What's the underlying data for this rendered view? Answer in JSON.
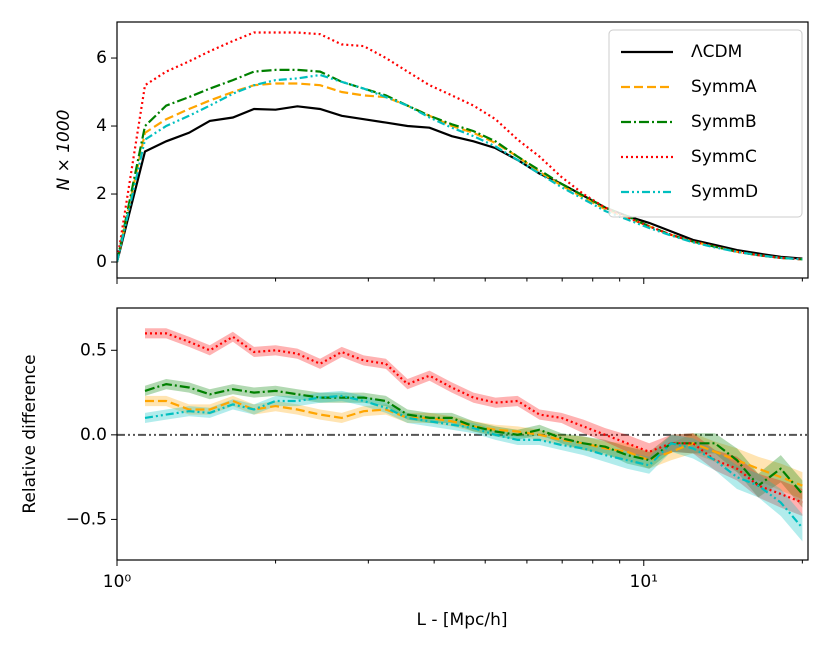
{
  "chart_data": [
    {
      "type": "line",
      "ylabel": "N × 1000",
      "x": [
        1.0,
        1.13,
        1.24,
        1.37,
        1.5,
        1.66,
        1.82,
        2.0,
        2.2,
        2.43,
        2.67,
        2.94,
        3.24,
        3.56,
        3.92,
        4.32,
        4.75,
        5.23,
        5.76,
        6.34,
        6.98,
        7.68,
        8.45,
        9.3,
        10.24,
        11.27,
        12.4,
        13.65,
        15.03,
        16.5,
        18.2,
        20.0
      ],
      "xlim": [
        1,
        20.5
      ],
      "log_x": true,
      "ylim": [
        -0.47,
        7.06
      ],
      "yticks": [
        0,
        2,
        4,
        6
      ],
      "legend": "upper right",
      "series": [
        {
          "name": "ΛCDM",
          "color": "#000000",
          "linestyle": "solid",
          "values": [
            0,
            3.25,
            3.55,
            3.8,
            4.15,
            4.25,
            4.5,
            4.48,
            4.58,
            4.5,
            4.3,
            4.2,
            4.1,
            4.0,
            3.95,
            3.7,
            3.55,
            3.35,
            3.0,
            2.6,
            2.3,
            1.95,
            1.6,
            1.35,
            1.15,
            0.9,
            0.65,
            0.5,
            0.35,
            0.25,
            0.15,
            0.1
          ]
        },
        {
          "name": "SymmA",
          "color": "#ffa500",
          "linestyle": "dashed",
          "values": [
            0,
            3.8,
            4.2,
            4.5,
            4.75,
            5.0,
            5.2,
            5.25,
            5.25,
            5.2,
            5.0,
            4.9,
            4.85,
            4.6,
            4.3,
            4.0,
            3.8,
            3.5,
            3.1,
            2.65,
            2.25,
            1.9,
            1.55,
            1.3,
            1.05,
            0.8,
            0.6,
            0.45,
            0.3,
            0.2,
            0.12,
            0.08
          ]
        },
        {
          "name": "SymmB",
          "color": "#008000",
          "linestyle": "dashdot",
          "values": [
            0,
            4.0,
            4.6,
            4.85,
            5.1,
            5.35,
            5.6,
            5.65,
            5.65,
            5.6,
            5.3,
            5.1,
            4.9,
            4.6,
            4.3,
            4.05,
            3.85,
            3.55,
            3.1,
            2.7,
            2.3,
            1.95,
            1.6,
            1.35,
            1.05,
            0.8,
            0.6,
            0.45,
            0.3,
            0.2,
            0.12,
            0.08
          ]
        },
        {
          "name": "SymmC",
          "color": "#ff0000",
          "linestyle": "dotted",
          "values": [
            0,
            5.2,
            5.6,
            5.9,
            6.2,
            6.5,
            6.75,
            6.75,
            6.75,
            6.7,
            6.4,
            6.35,
            6.0,
            5.6,
            5.2,
            4.9,
            4.6,
            4.2,
            3.6,
            3.1,
            2.5,
            2.0,
            1.6,
            1.3,
            1.05,
            0.8,
            0.6,
            0.45,
            0.3,
            0.2,
            0.12,
            0.08
          ]
        },
        {
          "name": "SymmD",
          "color": "#00bfbf",
          "linestyle": "dashdotdot",
          "values": [
            0,
            3.6,
            4.0,
            4.3,
            4.6,
            4.95,
            5.2,
            5.35,
            5.4,
            5.5,
            5.3,
            5.1,
            4.85,
            4.6,
            4.25,
            3.95,
            3.7,
            3.4,
            3.0,
            2.6,
            2.2,
            1.85,
            1.5,
            1.25,
            1.0,
            0.78,
            0.58,
            0.43,
            0.3,
            0.2,
            0.12,
            0.08
          ]
        }
      ]
    },
    {
      "type": "band-line",
      "xlabel": "L - [Mpc/h]",
      "ylabel": "Relative difference",
      "x": [
        1.13,
        1.24,
        1.37,
        1.5,
        1.66,
        1.82,
        2.0,
        2.2,
        2.43,
        2.67,
        2.94,
        3.24,
        3.56,
        3.92,
        4.32,
        4.75,
        5.23,
        5.76,
        6.34,
        6.98,
        7.68,
        8.45,
        9.3,
        10.24,
        11.27,
        12.4,
        13.65,
        15.03,
        16.5,
        18.2,
        20.0
      ],
      "xlim": [
        1,
        20.5
      ],
      "log_x": true,
      "xticks": [
        {
          "value": 1,
          "label": "10⁰"
        },
        {
          "value": 10,
          "label": "10¹"
        }
      ],
      "xminor": [
        2,
        3,
        4,
        5,
        6,
        7,
        8,
        9,
        20
      ],
      "ylim": [
        -0.74,
        0.75
      ],
      "yticks": [
        0.5,
        {
          "value": 0,
          "label": "0.0"
        },
        {
          "value": -0.5,
          "label": "−0.5"
        }
      ],
      "hline": {
        "value": 0,
        "color": "#555555"
      },
      "series": [
        {
          "name": "SymmA",
          "color": "#ffa500",
          "linestyle": "dashed",
          "values": [
            0.2,
            0.2,
            0.15,
            0.15,
            0.2,
            0.15,
            0.17,
            0.15,
            0.12,
            0.1,
            0.14,
            0.15,
            0.1,
            0.1,
            0.08,
            0.05,
            0.03,
            0.02,
            0.0,
            -0.03,
            -0.05,
            -0.08,
            -0.1,
            -0.15,
            -0.1,
            -0.05,
            -0.1,
            -0.15,
            -0.2,
            -0.25,
            -0.3
          ],
          "errors": [
            0.03,
            0.03,
            0.03,
            0.03,
            0.03,
            0.03,
            0.03,
            0.03,
            0.03,
            0.03,
            0.03,
            0.03,
            0.03,
            0.03,
            0.03,
            0.03,
            0.03,
            0.03,
            0.03,
            0.03,
            0.04,
            0.04,
            0.05,
            0.05,
            0.05,
            0.06,
            0.06,
            0.07,
            0.07,
            0.08,
            0.08
          ]
        },
        {
          "name": "SymmB",
          "color": "#008000",
          "linestyle": "dashdot",
          "values": [
            0.26,
            0.3,
            0.28,
            0.24,
            0.27,
            0.25,
            0.26,
            0.24,
            0.22,
            0.22,
            0.22,
            0.2,
            0.12,
            0.1,
            0.1,
            0.05,
            0.02,
            0.0,
            0.03,
            -0.02,
            -0.05,
            -0.07,
            -0.12,
            -0.15,
            -0.05,
            -0.05,
            -0.05,
            -0.15,
            -0.3,
            -0.2,
            -0.35
          ],
          "errors": [
            0.03,
            0.03,
            0.03,
            0.03,
            0.03,
            0.03,
            0.03,
            0.03,
            0.03,
            0.03,
            0.03,
            0.03,
            0.03,
            0.03,
            0.03,
            0.03,
            0.03,
            0.03,
            0.03,
            0.03,
            0.04,
            0.04,
            0.05,
            0.05,
            0.05,
            0.06,
            0.06,
            0.07,
            0.07,
            0.08,
            0.08
          ]
        },
        {
          "name": "SymmC",
          "color": "#ff0000",
          "linestyle": "dotted",
          "values": [
            0.6,
            0.6,
            0.55,
            0.5,
            0.58,
            0.49,
            0.5,
            0.48,
            0.42,
            0.49,
            0.44,
            0.42,
            0.3,
            0.35,
            0.28,
            0.22,
            0.19,
            0.2,
            0.12,
            0.1,
            0.05,
            0.0,
            -0.05,
            -0.1,
            -0.05,
            -0.05,
            -0.15,
            -0.2,
            -0.3,
            -0.35,
            -0.4
          ],
          "errors": [
            0.03,
            0.03,
            0.03,
            0.03,
            0.03,
            0.03,
            0.03,
            0.03,
            0.03,
            0.03,
            0.03,
            0.03,
            0.03,
            0.03,
            0.03,
            0.03,
            0.03,
            0.03,
            0.03,
            0.03,
            0.04,
            0.04,
            0.05,
            0.05,
            0.05,
            0.06,
            0.06,
            0.07,
            0.07,
            0.08,
            0.08
          ]
        },
        {
          "name": "SymmD",
          "color": "#00bfbf",
          "linestyle": "dashdotdot",
          "values": [
            0.1,
            0.12,
            0.14,
            0.13,
            0.18,
            0.15,
            0.2,
            0.2,
            0.22,
            0.23,
            0.2,
            0.16,
            0.1,
            0.08,
            0.06,
            0.04,
            0.0,
            -0.03,
            -0.03,
            -0.06,
            -0.08,
            -0.12,
            -0.15,
            -0.18,
            -0.05,
            -0.08,
            -0.15,
            -0.25,
            -0.3,
            -0.4,
            -0.55
          ],
          "errors": [
            0.03,
            0.03,
            0.03,
            0.03,
            0.03,
            0.03,
            0.03,
            0.03,
            0.03,
            0.03,
            0.03,
            0.03,
            0.03,
            0.03,
            0.03,
            0.03,
            0.03,
            0.03,
            0.03,
            0.03,
            0.04,
            0.04,
            0.05,
            0.05,
            0.05,
            0.06,
            0.06,
            0.07,
            0.07,
            0.08,
            0.08
          ]
        }
      ]
    }
  ]
}
